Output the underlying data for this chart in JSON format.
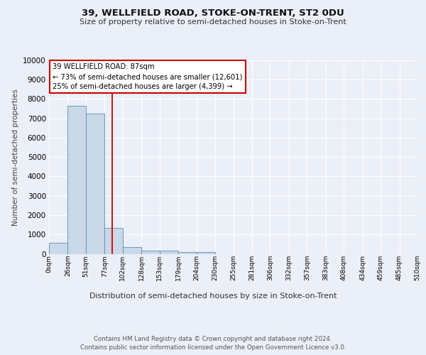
{
  "title1": "39, WELLFIELD ROAD, STOKE-ON-TRENT, ST2 0DU",
  "title2": "Size of property relative to semi-detached houses in Stoke-on-Trent",
  "xlabel": "Distribution of semi-detached houses by size in Stoke-on-Trent",
  "ylabel": "Number of semi-detached properties",
  "footer1": "Contains HM Land Registry data © Crown copyright and database right 2024.",
  "footer2": "Contains public sector information licensed under the Open Government Licence v3.0.",
  "bin_labels": [
    "0sqm",
    "26sqm",
    "51sqm",
    "77sqm",
    "102sqm",
    "128sqm",
    "153sqm",
    "179sqm",
    "204sqm",
    "230sqm",
    "255sqm",
    "281sqm",
    "306sqm",
    "332sqm",
    "357sqm",
    "383sqm",
    "408sqm",
    "434sqm",
    "459sqm",
    "485sqm",
    "510sqm"
  ],
  "bar_heights": [
    580,
    7650,
    7250,
    1350,
    350,
    175,
    150,
    100,
    80,
    0,
    0,
    0,
    0,
    0,
    0,
    0,
    0,
    0,
    0,
    0
  ],
  "bar_color": "#c9d9e8",
  "bar_edge_color": "#5b8db8",
  "property_value": 87,
  "annotation_title": "39 WELLFIELD ROAD: 87sqm",
  "annotation_line1": "← 73% of semi-detached houses are smaller (12,601)",
  "annotation_line2": "25% of semi-detached houses are larger (4,399) →",
  "annotation_box_color": "#ffffff",
  "annotation_box_edge": "#cc0000",
  "vline_color": "#cc0000",
  "ylim": [
    0,
    10000
  ],
  "yticks": [
    0,
    1000,
    2000,
    3000,
    4000,
    5000,
    6000,
    7000,
    8000,
    9000,
    10000
  ],
  "bg_color": "#eaeff8",
  "plot_bg_color": "#eaeff8",
  "grid_color": "#ffffff",
  "bin_edges": [
    0,
    26,
    51,
    77,
    102,
    128,
    153,
    179,
    204,
    230,
    255,
    281,
    306,
    332,
    357,
    383,
    408,
    434,
    459,
    485,
    510
  ]
}
